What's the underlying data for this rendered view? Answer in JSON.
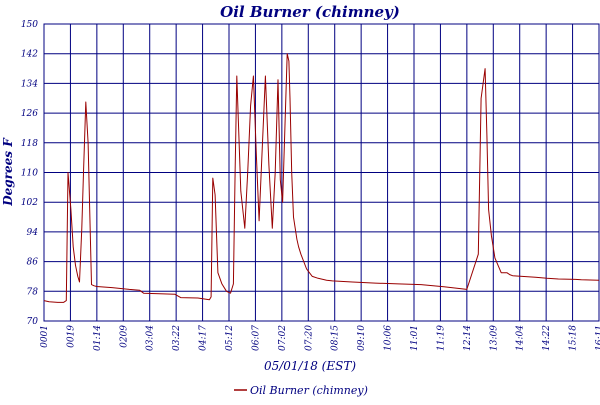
{
  "chart_data": {
    "type": "line",
    "title": "Oil Burner (chimney)",
    "xlabel": "05/01/18 (EST)",
    "ylabel": "Degrees F",
    "ylim": [
      70,
      150
    ],
    "yticks": [
      70,
      78,
      86,
      94,
      102,
      110,
      118,
      126,
      134,
      142,
      150
    ],
    "xlim": [
      "00:01",
      "16:11"
    ],
    "xtick_labels": [
      "0001",
      "0019",
      "01:14",
      "0209",
      "03:04",
      "03:22",
      "04:17",
      "05:12",
      "06:07",
      "07:02",
      "07:20",
      "08:15",
      "09:10",
      "10:06",
      "11:01",
      "11:19",
      "12:14",
      "13:09",
      "14:04",
      "14:22",
      "15:18",
      "16:11"
    ],
    "grid": true,
    "legend_position": "bottom-center",
    "colors": {
      "series": "#990000",
      "grid": "#000080",
      "text": "#000080"
    },
    "series": [
      {
        "name": "Oil Burner (chimney)",
        "x": [
          "00:01",
          "00:10",
          "00:25",
          "00:35",
          "00:40",
          "00:43",
          "00:48",
          "00:52",
          "00:56",
          "01:00",
          "01:03",
          "01:07",
          "01:10",
          "01:14",
          "01:18",
          "01:24",
          "01:28",
          "01:33",
          "02:00",
          "02:30",
          "02:48",
          "02:55",
          "03:30",
          "03:50",
          "04:00",
          "04:30",
          "04:50",
          "04:53",
          "04:56",
          "05:00",
          "05:05",
          "05:12",
          "05:20",
          "05:27",
          "05:32",
          "05:35",
          "05:38",
          "05:45",
          "05:52",
          "05:57",
          "06:02",
          "06:07",
          "06:12",
          "06:17",
          "06:22",
          "06:28",
          "06:34",
          "06:40",
          "06:45",
          "06:50",
          "06:54",
          "06:58",
          "07:02",
          "07:06",
          "07:09",
          "07:11",
          "07:14",
          "07:17",
          "07:20",
          "07:23",
          "07:26",
          "07:30",
          "07:40",
          "07:50",
          "08:00",
          "08:15",
          "08:25",
          "09:00",
          "09:40",
          "10:20",
          "11:00",
          "11:40",
          "12:20",
          "12:40",
          "12:45",
          "12:52",
          "12:55",
          "12:58",
          "13:03",
          "13:09",
          "13:20",
          "13:30",
          "13:35",
          "13:40",
          "14:20",
          "14:40",
          "15:00",
          "15:30",
          "15:40",
          "16:11"
        ],
        "y": [
          75.5,
          75.2,
          75,
          75,
          75.5,
          110,
          100,
          90,
          85,
          82,
          80.5,
          95,
          110,
          129,
          118,
          79.8,
          79.5,
          79.3,
          79,
          78.5,
          78.3,
          77.5,
          77.3,
          77.2,
          76.3,
          76.2,
          75.7,
          76.5,
          108.5,
          104,
          83,
          80,
          78,
          77.5,
          80,
          110,
          136,
          105,
          95,
          110,
          128,
          136,
          115,
          97,
          115,
          136,
          112,
          95,
          110,
          135,
          108,
          102,
          122,
          142,
          140,
          130,
          110,
          98,
          95,
          92,
          90,
          88,
          84,
          82,
          81.5,
          81,
          80.8,
          80.5,
          80.2,
          80,
          79.8,
          79.2,
          78.5,
          88,
          130,
          138,
          120,
          100,
          93,
          87,
          83,
          83,
          82.5,
          82.2,
          81.8,
          81.5,
          81.3,
          81.2,
          81.1,
          81
        ]
      }
    ]
  }
}
